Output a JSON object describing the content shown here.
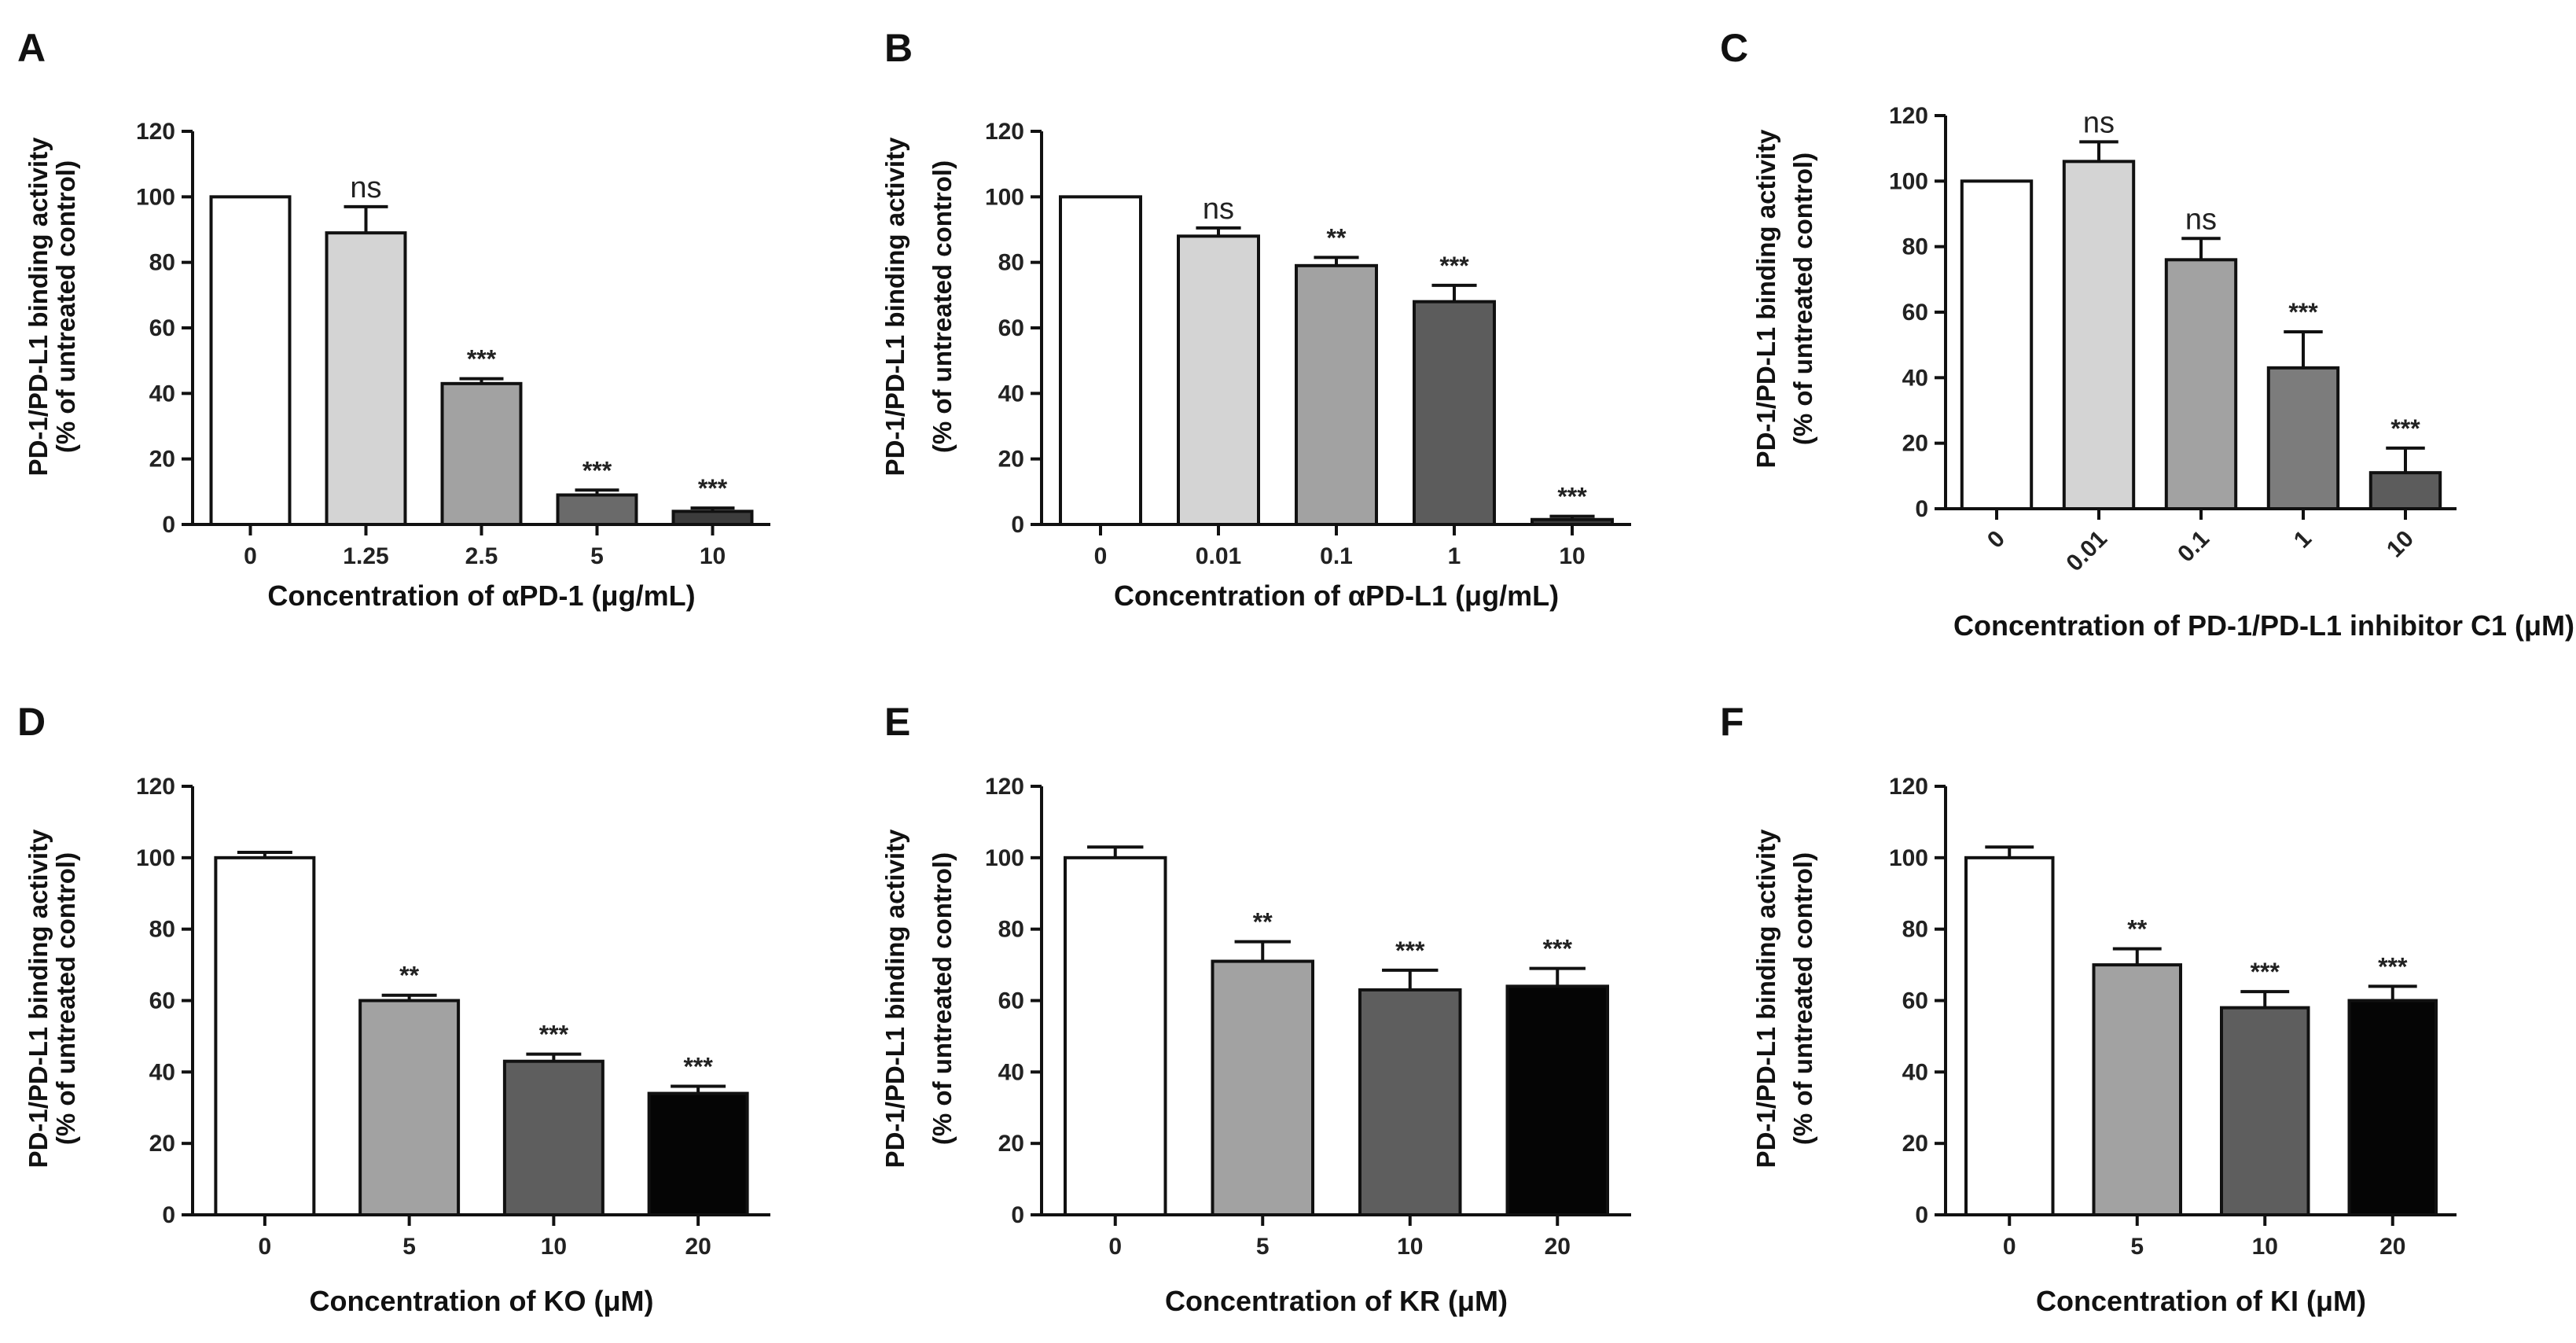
{
  "chart_data": [
    {
      "panel": "A",
      "type": "bar",
      "categories": [
        "0",
        "1.25",
        "2.5",
        "5",
        "10"
      ],
      "values": [
        100,
        89,
        43,
        9,
        4
      ],
      "errors": [
        0,
        8,
        1.5,
        1.5,
        1
      ],
      "significance": [
        "",
        "ns",
        "***",
        "***",
        "***"
      ],
      "bar_colors": [
        "#ffffff",
        "#d4d4d4",
        "#a2a2a2",
        "#6a6a6a",
        "#3c3c3c"
      ],
      "ylabel_line1": "PD-1/PD-L1 binding activity",
      "ylabel_line2": "(% of untreated control)",
      "xlabel": "Concentration of αPD-1 (μg/mL)",
      "ylim": [
        0,
        120
      ],
      "yticks": [
        "0",
        "20",
        "40",
        "60",
        "80",
        "100",
        "120"
      ],
      "rotate_ticks": false
    },
    {
      "panel": "B",
      "type": "bar",
      "categories": [
        "0",
        "0.01",
        "0.1",
        "1",
        "10"
      ],
      "values": [
        100,
        88,
        79,
        68,
        1.5
      ],
      "errors": [
        0,
        2.5,
        2.5,
        5,
        1
      ],
      "significance": [
        "",
        "ns",
        "**",
        "***",
        "***"
      ],
      "bar_colors": [
        "#ffffff",
        "#d4d4d4",
        "#a2a2a2",
        "#5c5c5c",
        "#3c3c3c"
      ],
      "ylabel_line1": "PD-1/PD-L1 binding activity",
      "ylabel_line2": "(% of untreated control)",
      "xlabel": "Concentration of αPD-L1 (μg/mL)",
      "ylim": [
        0,
        120
      ],
      "yticks": [
        "0",
        "20",
        "40",
        "60",
        "80",
        "100",
        "120"
      ],
      "rotate_ticks": false
    },
    {
      "panel": "C",
      "type": "bar",
      "categories": [
        "0",
        "0.01",
        "0.1",
        "1",
        "10"
      ],
      "values": [
        100,
        106,
        76,
        43,
        11
      ],
      "errors": [
        0,
        6,
        6.5,
        11,
        7.5
      ],
      "significance": [
        "",
        "ns",
        "ns",
        "***",
        "***"
      ],
      "bar_colors": [
        "#ffffff",
        "#d4d4d4",
        "#a2a2a2",
        "#7c7c7c",
        "#5c5c5c"
      ],
      "ylabel_line1": "PD-1/PD-L1 binding activity",
      "ylabel_line2": "(% of untreated control)",
      "xlabel": "Concentration of PD-1/PD-L1 inhibitor C1 (μM)",
      "ylim": [
        0,
        120
      ],
      "yticks": [
        "0",
        "20",
        "40",
        "60",
        "80",
        "100",
        "120"
      ],
      "rotate_ticks": true
    },
    {
      "panel": "D",
      "type": "bar",
      "categories": [
        "0",
        "5",
        "10",
        "20"
      ],
      "values": [
        100,
        60,
        43,
        34
      ],
      "errors": [
        1.5,
        1.5,
        2,
        2
      ],
      "significance": [
        "",
        "**",
        "***",
        "***"
      ],
      "bar_colors": [
        "#ffffff",
        "#a2a2a2",
        "#5e5e5e",
        "#050505"
      ],
      "ylabel_line1": "PD-1/PD-L1 binding activity",
      "ylabel_line2": "(% of untreated control)",
      "xlabel": "Concentration of KO (μM)",
      "ylim": [
        0,
        120
      ],
      "yticks": [
        "0",
        "20",
        "40",
        "60",
        "80",
        "100",
        "120"
      ],
      "rotate_ticks": false
    },
    {
      "panel": "E",
      "type": "bar",
      "categories": [
        "0",
        "5",
        "10",
        "20"
      ],
      "values": [
        100,
        71,
        63,
        64
      ],
      "errors": [
        3,
        5.5,
        5.5,
        5
      ],
      "significance": [
        "",
        "**",
        "***",
        "***"
      ],
      "bar_colors": [
        "#ffffff",
        "#a2a2a2",
        "#5e5e5e",
        "#050505"
      ],
      "ylabel_line1": "PD-1/PD-L1 binding activity",
      "ylabel_line2": "(% of untreated control)",
      "xlabel": "Concentration of KR (μM)",
      "ylim": [
        0,
        120
      ],
      "yticks": [
        "0",
        "20",
        "40",
        "60",
        "80",
        "100",
        "120"
      ],
      "rotate_ticks": false
    },
    {
      "panel": "F",
      "type": "bar",
      "categories": [
        "0",
        "5",
        "10",
        "20"
      ],
      "values": [
        100,
        70,
        58,
        60
      ],
      "errors": [
        3,
        4.5,
        4.5,
        4
      ],
      "significance": [
        "",
        "**",
        "***",
        "***"
      ],
      "bar_colors": [
        "#ffffff",
        "#a2a2a2",
        "#5e5e5e",
        "#050505"
      ],
      "ylabel_line1": "PD-1/PD-L1 binding activity",
      "ylabel_line2": "(% of untreated control)",
      "xlabel": "Concentration of KI (μM)",
      "ylim": [
        0,
        120
      ],
      "yticks": [
        "0",
        "20",
        "40",
        "60",
        "80",
        "100",
        "120"
      ],
      "rotate_ticks": false
    }
  ]
}
